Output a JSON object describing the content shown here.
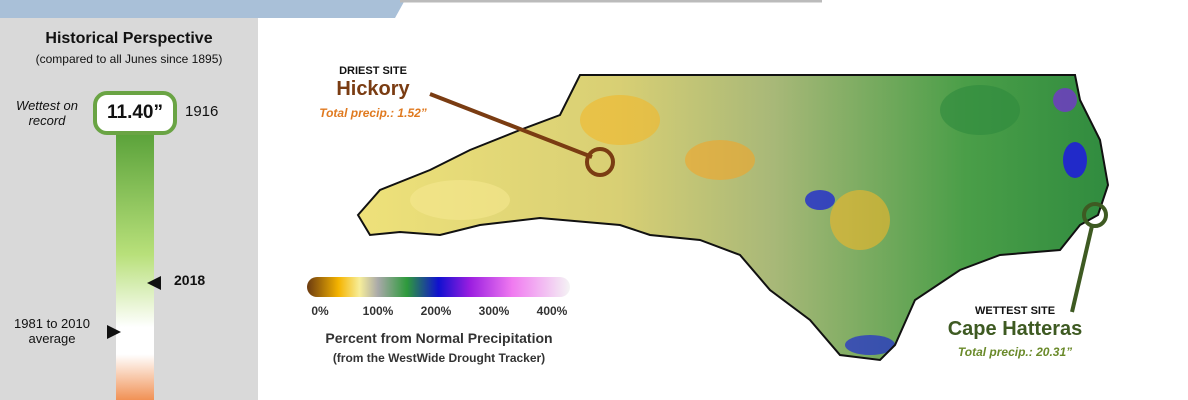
{
  "panel": {
    "title": "Historical Perspective",
    "subtitle": "(compared to all Junes since 1895)"
  },
  "scale": {
    "wettest_label": "Wettest on record",
    "wettest_value": "11.40”",
    "wettest_year": "1916",
    "current_year": "2018",
    "average_label": "1981 to 2010 average"
  },
  "legend": {
    "ticks": [
      "0%",
      "100%",
      "200%",
      "300%",
      "400%"
    ],
    "title": "Percent from Normal Precipitation",
    "source": "(from the WestWide Drought Tracker)"
  },
  "sites": [
    {
      "heading": "DRIEST SITE",
      "name": "Hickory",
      "total": "Total precip.: 1.52”"
    },
    {
      "heading": "WETTEST SITE",
      "name": "Cape Hatteras",
      "total": "Total precip.: 20.31”"
    }
  ]
}
